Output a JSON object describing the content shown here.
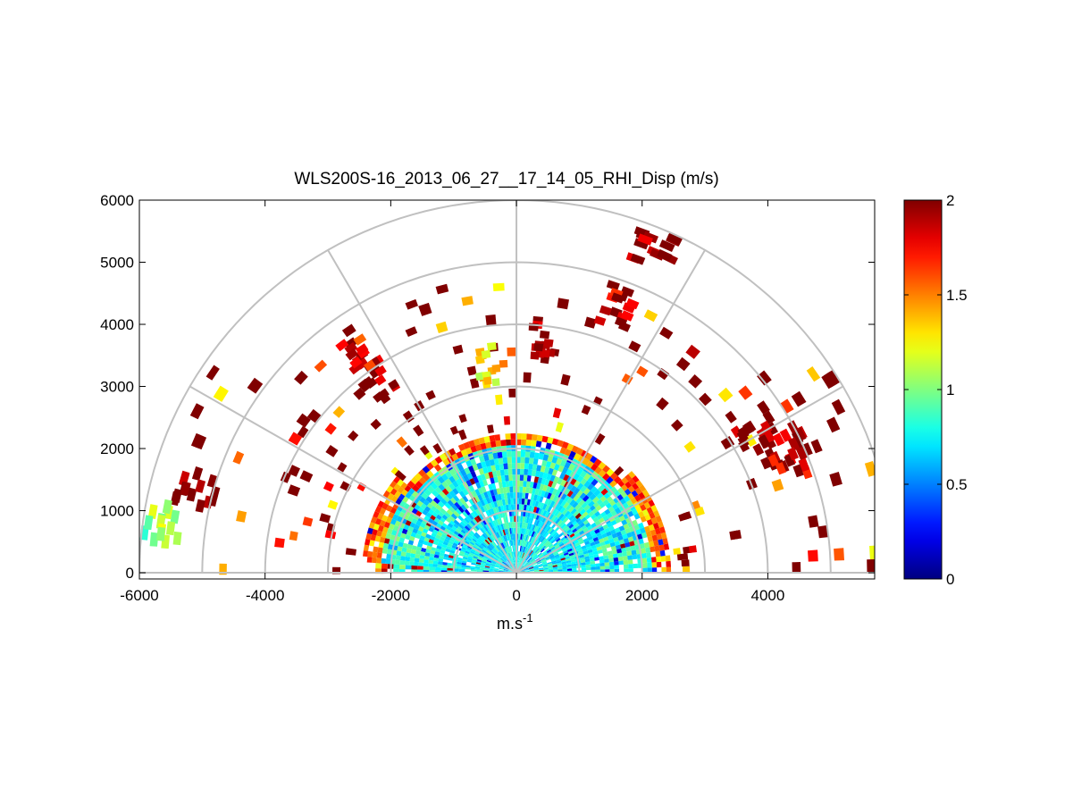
{
  "chart_data": {
    "type": "heatmap",
    "projection": "polar-rhi",
    "title": "WLS200S-16_2013_06_27__17_14_05_RHI_Disp (m/s)",
    "xlabel": "m.s",
    "xlabel_superscript": "-1",
    "ylabel": "",
    "xlim": [
      -6000,
      5700
    ],
    "ylim": [
      -100,
      6000
    ],
    "xticks": [
      -6000,
      -4000,
      -2000,
      0,
      2000,
      4000
    ],
    "xtick_labels": [
      "-6000",
      "-4000",
      "-2000",
      "0",
      "2000",
      "4000"
    ],
    "yticks": [
      0,
      1000,
      2000,
      3000,
      4000,
      5000,
      6000
    ],
    "ytick_labels": [
      "0",
      "1000",
      "2000",
      "3000",
      "4000",
      "5000",
      "6000"
    ],
    "polar_grid": {
      "range_rings": [
        1000,
        2000,
        3000,
        4000,
        5000,
        6000
      ],
      "spokes_deg": [
        0,
        30,
        60,
        90,
        120,
        150,
        180
      ],
      "color": "#c0c0c0"
    },
    "colorbar": {
      "colormap": "jet",
      "range": [
        0,
        2
      ],
      "ticks": [
        0,
        0.5,
        1,
        1.5,
        2
      ],
      "tick_labels": [
        "0",
        "0.5",
        "1",
        "1.5",
        "2"
      ]
    },
    "grid": true,
    "value_units": "m/s",
    "observations": {
      "max_range_dense": 2400,
      "typical_value_near": 0.75,
      "typical_value_mid": 0.8,
      "typical_value_edge": 1.5,
      "outlier_value_far": 2.0,
      "dense_sectors_deg": [
        [
          0,
          40
        ],
        [
          140,
          175
        ]
      ],
      "clusters": [
        {
          "range": 3700,
          "elev_deg": 124,
          "value": 2.0
        },
        {
          "range": 4300,
          "elev_deg": 125,
          "value": 1.8
        },
        {
          "range": 3300,
          "elev_deg": 97,
          "value": 1.2
        },
        {
          "range": 3700,
          "elev_deg": 83,
          "value": 2.0
        },
        {
          "range": 4500,
          "elev_deg": 68,
          "value": 1.9
        },
        {
          "range": 5600,
          "elev_deg": 66,
          "value": 2.0
        },
        {
          "range": 4400,
          "elev_deg": 29,
          "value": 2.0
        },
        {
          "range": 4700,
          "elev_deg": 25,
          "value": 2.0
        },
        {
          "range": 4600,
          "elev_deg": 21,
          "value": 1.9
        },
        {
          "range": 5200,
          "elev_deg": 164,
          "value": 2.0
        },
        {
          "range": 5600,
          "elev_deg": 171,
          "value": 1.0
        }
      ]
    }
  }
}
